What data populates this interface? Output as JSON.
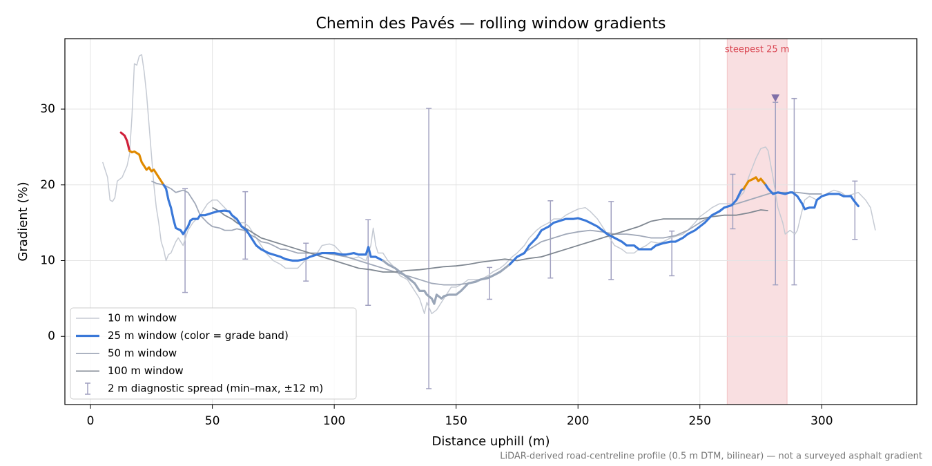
{
  "chart_data": {
    "type": "line",
    "title": "Chemin des Pavés — rolling window gradients",
    "x_label": "Distance uphill (m)",
    "y_label": "Gradient (%)",
    "footnote": "LiDAR-derived road-centreline profile (0.5 m DTM, bilinear) — not a surveyed asphalt gradient",
    "xlim": [
      -10.5,
      339
    ],
    "ylim": [
      -9,
      39.3
    ],
    "xticks": [
      0,
      50,
      100,
      150,
      200,
      250,
      300
    ],
    "yticks": [
      0,
      10,
      20,
      30
    ],
    "grid": true,
    "legend": "lower left",
    "highlight": {
      "label": "steepest 25 m",
      "xlim": [
        261.2,
        285.8
      ],
      "color": "#d9434f"
    },
    "marker": {
      "x": 281,
      "y": 31.5,
      "color": "#8070a8"
    },
    "series": [
      {
        "name": "10 m window",
        "color": "#c5cad3",
        "width": 1.5,
        "x": [
          5,
          7,
          8,
          9,
          10,
          11,
          13,
          15,
          16,
          17,
          18,
          19,
          20,
          21,
          22,
          23,
          24,
          25,
          26,
          27,
          28,
          29,
          30,
          31,
          32,
          33,
          35,
          36,
          38,
          40,
          42,
          45,
          48,
          50,
          52,
          55,
          58,
          60,
          63,
          65,
          68,
          70,
          72,
          75,
          78,
          80,
          83,
          85,
          88,
          90,
          93,
          95,
          98,
          100,
          103,
          105,
          108,
          110,
          113,
          115,
          116,
          117,
          118,
          120,
          122,
          125,
          127,
          130,
          133,
          135,
          137,
          138,
          140,
          142,
          145,
          148,
          150,
          153,
          155,
          158,
          160,
          163,
          165,
          168,
          170,
          173,
          175,
          178,
          180,
          183,
          185,
          188,
          190,
          193,
          195,
          198,
          200,
          203,
          205,
          208,
          210,
          213,
          215,
          218,
          220,
          223,
          225,
          228,
          230,
          233,
          235,
          238,
          240,
          243,
          245,
          248,
          250,
          253,
          255,
          258,
          260,
          263,
          265,
          268,
          270,
          273,
          275,
          277,
          278,
          280,
          282,
          284,
          285,
          287,
          289,
          290,
          293,
          295,
          298,
          300,
          303,
          305,
          308,
          310,
          313,
          315,
          318,
          320,
          322
        ],
        "values": [
          23,
          21,
          18,
          17.8,
          18.3,
          20.5,
          21,
          22.5,
          24,
          29,
          36,
          35.8,
          37,
          37.2,
          35,
          32,
          28,
          24,
          20,
          17,
          15,
          12.5,
          11.5,
          10,
          10.8,
          11,
          12.5,
          13,
          12,
          14,
          15,
          16,
          17.5,
          18,
          18,
          17,
          16,
          15,
          15,
          14.5,
          13,
          12,
          11,
          10,
          9.5,
          9,
          9,
          9,
          10,
          10.5,
          11,
          12,
          12.2,
          12,
          11,
          10.5,
          10.3,
          10.5,
          10,
          12,
          14.3,
          12,
          11,
          11,
          10,
          9,
          8,
          7.5,
          6,
          5,
          3,
          4.5,
          3,
          3.5,
          5,
          6.5,
          6.5,
          7,
          7.5,
          7.5,
          7.5,
          8,
          8.5,
          9,
          9.5,
          10.5,
          11,
          12,
          13,
          14,
          14.5,
          15,
          15.5,
          15.5,
          16,
          16.5,
          16.8,
          17,
          16.5,
          15.5,
          14.5,
          13,
          12,
          11.5,
          11,
          11,
          11.5,
          12,
          12.5,
          12.3,
          12.5,
          13,
          13.2,
          13.5,
          14,
          15,
          15.8,
          16.5,
          17,
          17.5,
          17.5,
          17.5,
          18,
          19,
          21,
          23.5,
          24.8,
          25,
          24.5,
          21,
          17,
          15,
          13.5,
          14,
          13.5,
          14,
          18,
          18.5,
          18,
          18.5,
          19,
          19.3,
          19,
          18.5,
          18.8,
          19,
          18,
          17,
          14
        ]
      },
      {
        "name": "25 m window (color = grade band)",
        "color": "#3a78d8",
        "width": 3.2,
        "band_edges": [
          10,
          20,
          25
        ],
        "band_colors": [
          "#9aa6b8",
          "#3a78d8",
          "#e08a00",
          "#d0203a"
        ],
        "x": [
          12.5,
          14,
          15,
          16,
          17,
          18,
          20,
          21,
          22,
          23,
          24,
          25,
          26,
          27,
          28,
          30,
          31,
          32,
          33,
          34,
          35,
          37,
          38,
          39,
          40,
          41,
          42,
          44,
          45,
          47,
          50,
          52,
          55,
          57,
          58,
          60,
          62,
          64,
          66,
          68,
          70,
          73,
          75,
          78,
          80,
          83,
          85,
          88,
          90,
          93,
          95,
          98,
          100,
          103,
          105,
          108,
          110,
          113,
          114,
          115,
          117,
          120,
          122,
          125,
          127,
          130,
          133,
          135,
          137,
          138,
          140,
          141,
          142,
          144,
          145,
          147,
          150,
          152,
          155,
          158,
          160,
          163,
          165,
          168,
          170,
          172,
          175,
          178,
          180,
          183,
          185,
          188,
          190,
          193,
          195,
          198,
          200,
          203,
          205,
          208,
          210,
          212,
          215,
          218,
          220,
          223,
          225,
          228,
          230,
          232,
          235,
          238,
          240,
          243,
          245,
          248,
          250,
          252,
          255,
          258,
          260,
          263,
          265,
          267,
          268,
          270,
          272,
          273,
          274,
          275,
          277,
          278,
          280,
          282,
          285,
          287,
          288,
          290,
          292,
          293,
          295,
          297,
          298,
          300,
          303,
          305,
          307,
          309,
          312,
          313,
          315
        ],
        "values": [
          26.9,
          26.5,
          25.8,
          24.5,
          24.3,
          24.4,
          24,
          23,
          22.5,
          22,
          22.3,
          21.8,
          22,
          21.5,
          21,
          20,
          19.5,
          18,
          17,
          15.5,
          14.3,
          14,
          13.5,
          14,
          14.5,
          15.3,
          15.5,
          15.5,
          16,
          16,
          16.3,
          16.5,
          16.6,
          16.5,
          16,
          15.5,
          14.5,
          14,
          13,
          12,
          11.5,
          11,
          10.8,
          10.5,
          10.2,
          10,
          10,
          10.2,
          10.5,
          10.8,
          11,
          11,
          11,
          10.8,
          10.8,
          11,
          10.8,
          10.8,
          11.8,
          10.5,
          10.5,
          10,
          9.5,
          9,
          8.5,
          7.8,
          7,
          6,
          6,
          5.5,
          5,
          4.3,
          5.5,
          5,
          5.3,
          5.5,
          5.5,
          6,
          7,
          7.2,
          7.5,
          7.7,
          8,
          8.5,
          9,
          9.5,
          10.5,
          11,
          12,
          13,
          14,
          14.5,
          15,
          15.3,
          15.5,
          15.5,
          15.6,
          15.3,
          15,
          14.5,
          14,
          13.5,
          13,
          12.5,
          12,
          12,
          11.5,
          11.5,
          11.5,
          12,
          12.3,
          12.5,
          12.5,
          13,
          13.5,
          14,
          14.5,
          15,
          16,
          16.5,
          17,
          17.3,
          18,
          19.3,
          19.5,
          20.5,
          20.8,
          21,
          20.5,
          20.8,
          20,
          19.5,
          18.8,
          19,
          18.8,
          19,
          19,
          18.5,
          17.5,
          16.8,
          17,
          17,
          18,
          18.5,
          18.8,
          18.8,
          18.8,
          18.5,
          18.5,
          18,
          17.2
        ]
      },
      {
        "name": "50 m window",
        "color": "#a0a8b8",
        "width": 1.8,
        "x": [
          25,
          27,
          30,
          33,
          35,
          38,
          40,
          43,
          45,
          48,
          50,
          53,
          55,
          58,
          60,
          63,
          65,
          68,
          70,
          73,
          75,
          78,
          80,
          85,
          88,
          90,
          95,
          100,
          105,
          110,
          115,
          120,
          125,
          130,
          135,
          140,
          145,
          150,
          155,
          160,
          165,
          170,
          175,
          180,
          185,
          190,
          195,
          200,
          205,
          210,
          215,
          220,
          225,
          230,
          235,
          240,
          245,
          250,
          255,
          260,
          265,
          270,
          275,
          280,
          285,
          290,
          295,
          300
        ],
        "values": [
          20.5,
          20.2,
          20,
          19.5,
          19,
          19.3,
          19,
          17.5,
          16,
          15,
          14.5,
          14.3,
          14,
          14,
          14.2,
          14,
          13.5,
          13,
          12.5,
          12.3,
          12,
          11.5,
          11.5,
          11,
          11,
          11,
          11,
          10.8,
          10.5,
          10,
          9.5,
          9,
          8.5,
          8,
          7.5,
          7,
          6.8,
          6.8,
          7,
          7.5,
          8,
          9,
          10.5,
          11.5,
          12.5,
          13,
          13.5,
          13.8,
          14,
          13.8,
          13.5,
          13.5,
          13.3,
          13,
          13,
          13.3,
          14,
          15,
          16,
          17,
          17.5,
          18,
          18.5,
          19,
          19,
          19,
          18.8,
          18.8
        ]
      },
      {
        "name": "100 m window",
        "color": "#7f8791",
        "width": 1.8,
        "x": [
          50,
          53,
          55,
          58,
          60,
          65,
          70,
          75,
          80,
          85,
          90,
          95,
          100,
          105,
          110,
          115,
          120,
          125,
          130,
          135,
          140,
          145,
          150,
          155,
          160,
          165,
          170,
          175,
          180,
          185,
          190,
          195,
          200,
          205,
          210,
          215,
          220,
          225,
          230,
          235,
          240,
          245,
          250,
          255,
          260,
          265,
          270,
          275,
          278
        ],
        "values": [
          17,
          16.5,
          16,
          15.5,
          15,
          14,
          13,
          12.5,
          12,
          11.5,
          11,
          10.5,
          10,
          9.5,
          9,
          8.8,
          8.5,
          8.5,
          8.7,
          8.8,
          9,
          9.2,
          9.3,
          9.5,
          9.8,
          10,
          10.2,
          10,
          10.3,
          10.5,
          11,
          11.5,
          12,
          12.5,
          13,
          13.5,
          14,
          14.5,
          15.2,
          15.5,
          15.5,
          15.5,
          15.5,
          15.8,
          16,
          16,
          16.3,
          16.7,
          16.6
        ]
      }
    ],
    "error_bars": {
      "name": "2 m diagnostic spread (min–max, ±12 m)",
      "color": "#a0a0c0",
      "x": [
        38.8,
        63.5,
        88.4,
        113.9,
        138.8,
        163.7,
        188.7,
        213.6,
        238.5,
        263.5,
        281,
        288.7,
        313.6
      ],
      "low": [
        5.8,
        10.2,
        7.3,
        4.1,
        -6.9,
        4.9,
        7.7,
        7.5,
        8.0,
        14.2,
        6.8,
        6.8,
        12.8
      ],
      "high": [
        19.5,
        19.1,
        12.3,
        15.4,
        30.1,
        9.1,
        17.9,
        17.8,
        13.9,
        21.4,
        30.9,
        31.4,
        20.5
      ]
    }
  }
}
